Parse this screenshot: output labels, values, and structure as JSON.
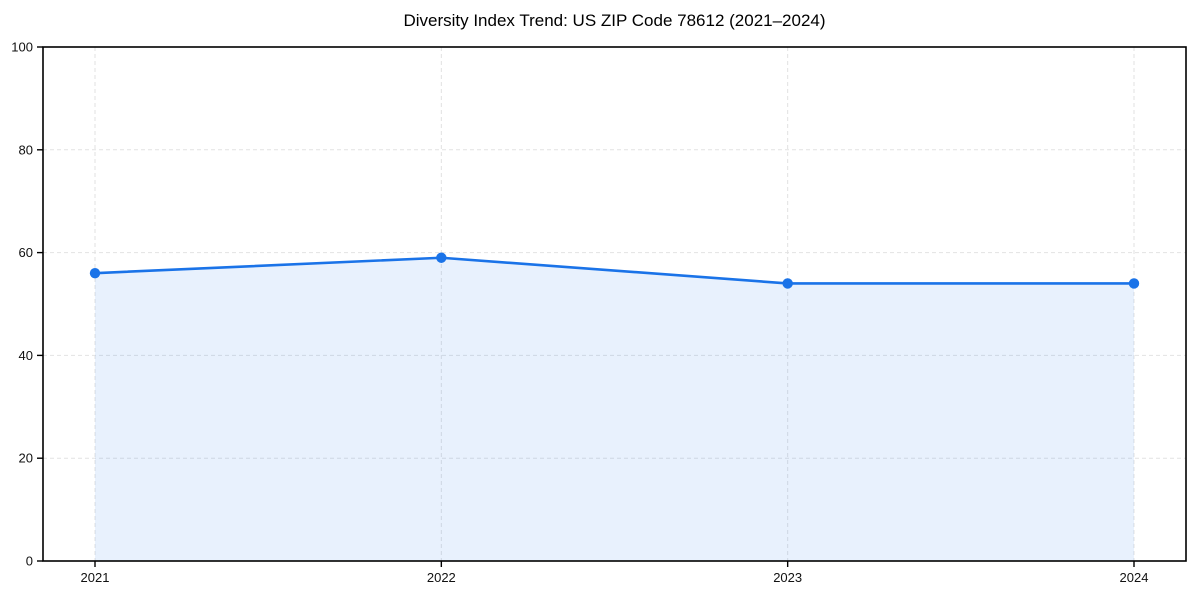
{
  "chart_data": {
    "type": "area",
    "title": "Diversity Index Trend: US ZIP Code 78612 (2021–2024)",
    "xlabel": "",
    "ylabel": "",
    "x": [
      "2021",
      "2022",
      "2023",
      "2024"
    ],
    "series": [
      {
        "name": "Diversity Index",
        "values": [
          56,
          59,
          54,
          54
        ]
      }
    ],
    "ylim": [
      0,
      100
    ],
    "yticks": [
      0,
      20,
      40,
      60,
      80,
      100
    ],
    "grid": true,
    "grid_style": "dashed",
    "legend": "none",
    "colors": {
      "line": "#1a73e8",
      "marker": "#1a73e8",
      "fill": "#1a73e8",
      "fill_opacity": 0.1,
      "grid": "#e2e2e2",
      "axis": "#000000",
      "tick_label": "#111111"
    }
  }
}
